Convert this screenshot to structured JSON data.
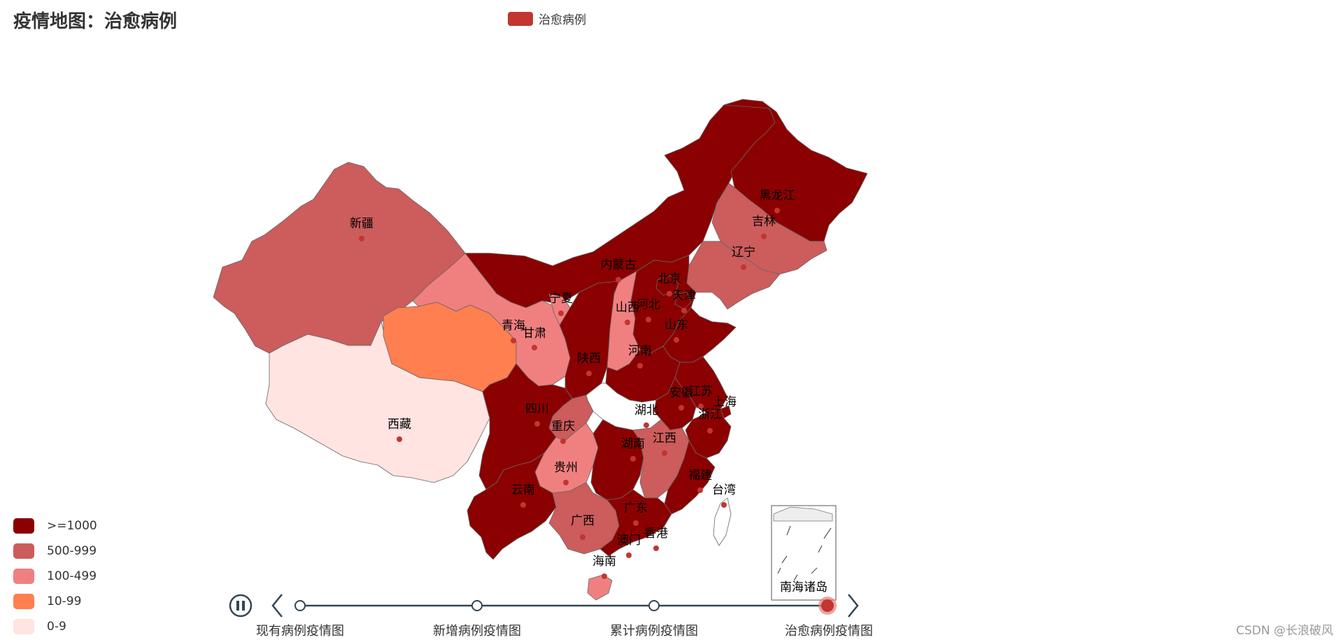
{
  "title": "疫情地图：治愈病例",
  "legend": {
    "series_name": "治愈病例",
    "color": "#c23531"
  },
  "visual_map": [
    {
      "label": ">=1000",
      "color": "#8b0000"
    },
    {
      "label": "500-999",
      "color": "#cd5c5c"
    },
    {
      "label": "100-499",
      "color": "#f08080"
    },
    {
      "label": "10-99",
      "color": "#ff7f50"
    },
    {
      "label": "0-9",
      "color": "#ffe4e1"
    }
  ],
  "timeline": {
    "items": [
      "现有病例疫情图",
      "新增病例疫情图",
      "累计病例疫情图",
      "治愈病例疫情图"
    ],
    "current_index": 3,
    "play_icon": "pause-icon"
  },
  "inset_label": "南海诸岛",
  "provinces": {
    "xinjiang": "新疆",
    "xizang": "西藏",
    "qinghai": "青海",
    "gansu": "甘肃",
    "neimenggu": "内蒙古",
    "ningxia": "宁夏",
    "shaanxi": "陕西",
    "shanxi": "山西",
    "sichuan": "四川",
    "chongqing": "重庆",
    "yunnan": "云南",
    "guizhou": "贵州",
    "guangxi": "广西",
    "hunan": "湖南",
    "hubei": "湖北",
    "henan": "河南",
    "hebei": "河北",
    "beijing": "北京",
    "tianjin": "天津",
    "shandong": "山东",
    "anhui": "安徽",
    "jiangsu": "江苏",
    "shanghai": "上海",
    "zhejiang": "浙江",
    "jiangxi": "江西",
    "fujian": "福建",
    "guangdong": "广东",
    "hongkong": "香港",
    "macau": "澳门",
    "hainan": "海南",
    "taiwan": "台湾",
    "liaoning": "辽宁",
    "jilin": "吉林",
    "heilongjiang": "黑龙江"
  },
  "watermark": "CSDN @长浪破风"
}
